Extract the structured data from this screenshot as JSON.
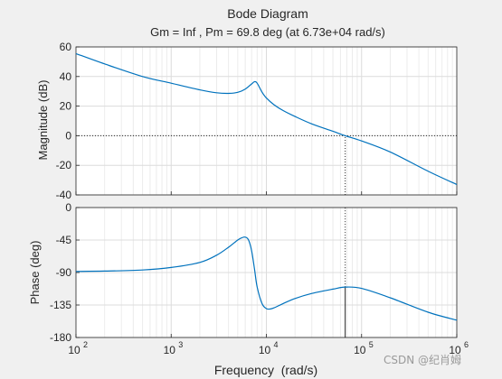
{
  "chart_data": [
    {
      "type": "line",
      "panel": "magnitude",
      "title": "Bode Diagram",
      "subtitle": "Gm = Inf ,  Pm = 69.8 deg (at 6.73e+04 rad/s)",
      "xlabel": "",
      "ylabel": "Magnitude (dB)",
      "xscale": "log",
      "xlim": [
        100,
        1000000
      ],
      "ylim": [
        -40,
        60
      ],
      "yticks": [
        -40,
        -20,
        0,
        20,
        40,
        60
      ],
      "grid": true,
      "series": [
        {
          "color": "#0072bd",
          "x": [
            100,
            200,
            500,
            1000,
            2000,
            3000,
            4000,
            5000,
            6000,
            7000,
            7500,
            8000,
            9000,
            10000,
            12000,
            15000,
            20000,
            30000,
            50000,
            67300,
            100000,
            200000,
            500000,
            1000000
          ],
          "y": [
            55.5,
            48.5,
            40,
            35.5,
            31,
            29,
            28.6,
            29.3,
            31.5,
            35,
            36.5,
            35.5,
            29.5,
            25.5,
            21,
            17,
            13,
            8,
            3,
            0,
            -3.5,
            -11,
            -24,
            -33
          ]
        }
      ],
      "annotations": [
        {
          "type": "hline",
          "y": 0,
          "style": "dotted"
        },
        {
          "type": "vline",
          "x": 67300,
          "style": "dotted",
          "range": [
            -40,
            0
          ]
        }
      ]
    },
    {
      "type": "line",
      "panel": "phase",
      "xlabel": "Frequency  (rad/s)",
      "ylabel": "Phase (deg)",
      "xscale": "log",
      "xlim": [
        100,
        1000000
      ],
      "ylim": [
        -180,
        0
      ],
      "yticks": [
        -180,
        -135,
        -90,
        -45,
        0
      ],
      "xticks": [
        100,
        1000,
        10000,
        100000,
        1000000
      ],
      "xtick_labels": [
        {
          "base": "10",
          "exp": "2"
        },
        {
          "base": "10",
          "exp": "3"
        },
        {
          "base": "10",
          "exp": "4"
        },
        {
          "base": "10",
          "exp": "5"
        },
        {
          "base": "10",
          "exp": "6"
        }
      ],
      "grid": true,
      "series": [
        {
          "color": "#0072bd",
          "x": [
            100,
            200,
            500,
            1000,
            2000,
            3000,
            4000,
            5000,
            5500,
            6000,
            6500,
            7000,
            7500,
            8000,
            9000,
            10000,
            11000,
            12000,
            15000,
            20000,
            30000,
            50000,
            67300,
            100000,
            200000,
            500000,
            1000000
          ],
          "y": [
            -88.5,
            -88,
            -86.5,
            -83,
            -76,
            -66,
            -55,
            -45,
            -42,
            -41,
            -45,
            -60,
            -85,
            -110,
            -133,
            -140,
            -140.5,
            -139,
            -133,
            -126,
            -119,
            -113,
            -110.2,
            -112,
            -125,
            -145,
            -156
          ]
        }
      ],
      "annotations": [
        {
          "type": "vline",
          "x": 67300,
          "style": "dotted",
          "range": [
            -110.2,
            0
          ]
        },
        {
          "type": "vline",
          "x": 67300,
          "style": "solid",
          "range": [
            -180,
            -110.2
          ]
        }
      ]
    }
  ],
  "watermark": "CSDN @纪肖姆"
}
